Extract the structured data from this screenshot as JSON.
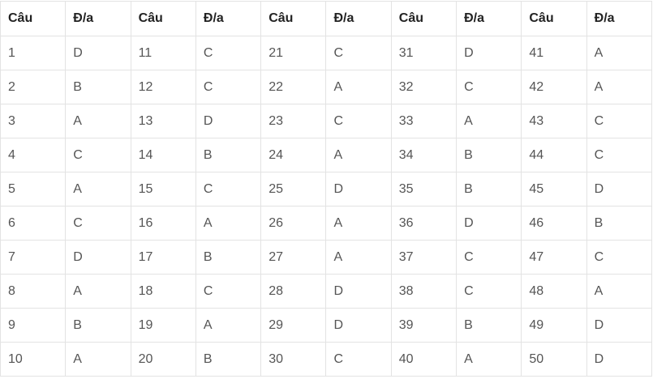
{
  "table": {
    "header": [
      "Câu",
      "Đ/a",
      "Câu",
      "Đ/a",
      "Câu",
      "Đ/a",
      "Câu",
      "Đ/a",
      "Câu",
      "Đ/a"
    ],
    "rows": [
      [
        1,
        "D",
        11,
        "C",
        21,
        "C",
        31,
        "D",
        41,
        "A"
      ],
      [
        2,
        "B",
        12,
        "C",
        22,
        "A",
        32,
        "C",
        42,
        "A"
      ],
      [
        3,
        "A",
        13,
        "D",
        23,
        "C",
        33,
        "A",
        43,
        "C"
      ],
      [
        4,
        "C",
        14,
        "B",
        24,
        "A",
        34,
        "B",
        44,
        "C"
      ],
      [
        5,
        "A",
        15,
        "C",
        25,
        "D",
        35,
        "B",
        45,
        "D"
      ],
      [
        6,
        "C",
        16,
        "A",
        26,
        "A",
        36,
        "D",
        46,
        "B"
      ],
      [
        7,
        "D",
        17,
        "B",
        27,
        "A",
        37,
        "C",
        47,
        "C"
      ],
      [
        8,
        "A",
        18,
        "C",
        28,
        "D",
        38,
        "C",
        48,
        "A"
      ],
      [
        9,
        "B",
        19,
        "A",
        29,
        "D",
        39,
        "B",
        49,
        "D"
      ],
      [
        10,
        "A",
        20,
        "B",
        30,
        "C",
        40,
        "A",
        50,
        "D"
      ]
    ]
  }
}
